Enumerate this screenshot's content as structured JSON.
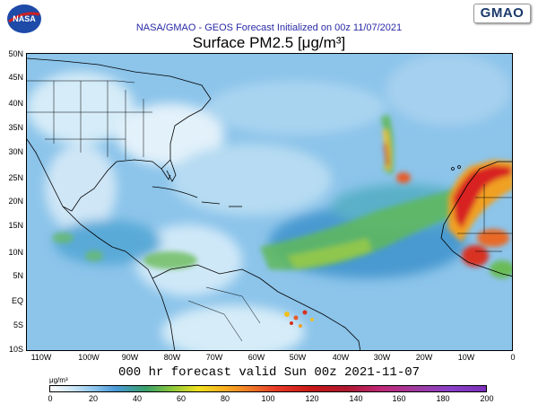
{
  "header": {
    "init_text": "NASA/GMAO - GEOS Forecast Initialized on 00z 11/07/2021",
    "title": "Surface PM2.5 [μg/m³]"
  },
  "logos": {
    "nasa_text": "NASA",
    "gmao_text": "GMAO"
  },
  "axes": {
    "lat_labels": [
      "50N",
      "45N",
      "40N",
      "35N",
      "30N",
      "25N",
      "20N",
      "15N",
      "10N",
      "5N",
      "EQ",
      "5S",
      "10S"
    ],
    "lon_labels": [
      "110W",
      "100W",
      "90W",
      "80W",
      "70W",
      "60W",
      "50W",
      "40W",
      "30W",
      "20W",
      "10W",
      "0"
    ]
  },
  "forecast_text": "000 hr forecast valid Sun 00z 2021-11-07",
  "colorbar": {
    "unit": "μg/m³",
    "ticks": [
      "0",
      "20",
      "40",
      "60",
      "80",
      "100",
      "120",
      "140",
      "160",
      "180",
      "200"
    ]
  },
  "colors": {
    "ocean_base": "#8cc4ea",
    "high": "#d8302a",
    "land_line": "#000000"
  }
}
